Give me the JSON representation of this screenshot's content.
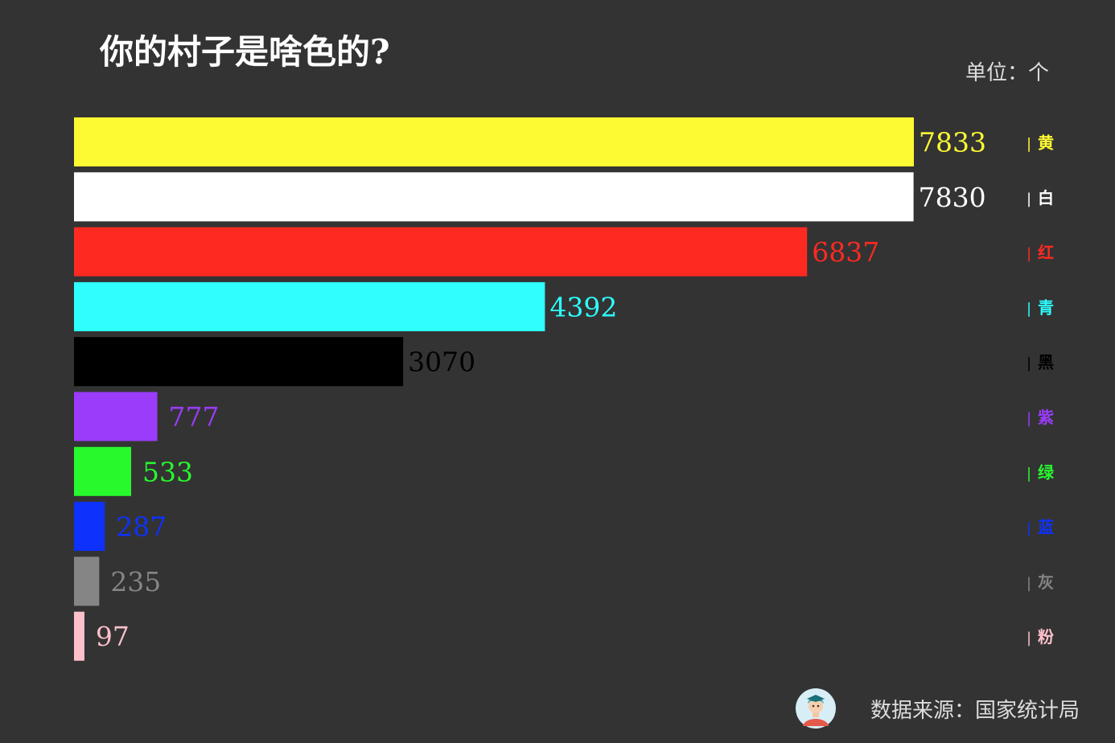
{
  "chart_data": {
    "type": "bar",
    "orientation": "horizontal",
    "title": "你的村子是啥色的?",
    "unit": "单位：个",
    "categories": [
      "黄",
      "白",
      "红",
      "青",
      "黑",
      "紫",
      "绿",
      "蓝",
      "灰",
      "粉"
    ],
    "values": [
      7833,
      7830,
      6837,
      4392,
      3070,
      777,
      533,
      287,
      235,
      97
    ],
    "colors": [
      "#fdf933",
      "#ffffff",
      "#fe2a21",
      "#2efefe",
      "#000000",
      "#9a3cf9",
      "#27f92d",
      "#0e32fb",
      "#858585",
      "#fdc0cb"
    ],
    "label_marker": "|",
    "xlim": [
      0,
      7833
    ],
    "grid": false,
    "legend": "none"
  },
  "footer": {
    "source": "数据来源：国家统计局",
    "avatar_icon": "person-avatar-icon"
  }
}
